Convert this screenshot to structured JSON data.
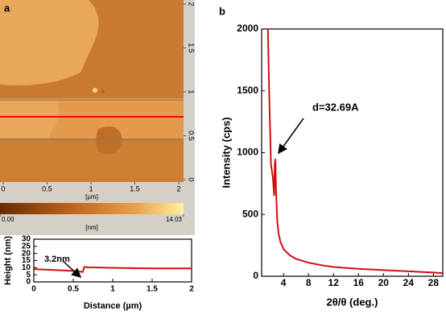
{
  "panel_labels": [
    "a",
    "b"
  ],
  "afm_image": {
    "xlim": [
      0,
      2
    ],
    "xticks": [
      0,
      0.5,
      1,
      1.5,
      2
    ],
    "yticks": [
      0,
      0.5,
      1,
      1.5,
      2
    ],
    "unit": "[µm]",
    "colorbar": {
      "ticks": [
        {
          "value": 0,
          "label": "0.00"
        },
        {
          "value": 14.03,
          "label": "14.03"
        }
      ],
      "unit": "[nm]"
    }
  },
  "chart_data": [
    {
      "type": "line",
      "xlabel": "Distance (µm)",
      "ylabel": "Height (nm)",
      "annotation": "3.2nm",
      "xlim": [
        0,
        2
      ],
      "xticks": [
        0,
        0.5,
        1,
        1.5,
        2
      ],
      "ylim": [
        0,
        30
      ],
      "yticks": [
        0,
        5,
        10,
        15,
        20,
        25,
        30
      ],
      "grid": false,
      "series": [
        {
          "color": "#d01010",
          "x": [
            0,
            0.2,
            0.4,
            0.55,
            0.62,
            0.64,
            0.7,
            0.9,
            1.2,
            1.5,
            2
          ],
          "values": [
            9,
            8.5,
            8,
            7.5,
            7,
            10.5,
            10.2,
            10,
            9.7,
            9.5,
            9.5
          ]
        }
      ]
    },
    {
      "type": "line",
      "xlabel": "2θ/θ (deg.)",
      "ylabel": "Intensity (cps)",
      "annotation": "d=32.69A",
      "xlim": [
        0.5,
        29.5
      ],
      "xticks": [
        4,
        8,
        12,
        16,
        20,
        24,
        28
      ],
      "ylim": [
        0,
        2000
      ],
      "yticks": [
        0,
        500,
        1000,
        1500,
        2000
      ],
      "grid": false,
      "series": [
        {
          "color": "#d01010",
          "x": [
            1.5,
            1.7,
            2.0,
            2.3,
            2.5,
            2.6,
            2.7,
            2.8,
            3.0,
            3.2,
            3.5,
            4,
            5,
            6,
            8,
            10,
            12,
            16,
            20,
            24,
            28,
            29.5
          ],
          "values": [
            2000,
            1500,
            900,
            800,
            650,
            900,
            950,
            700,
            450,
            350,
            280,
            220,
            170,
            140,
            110,
            90,
            75,
            60,
            50,
            40,
            30,
            25
          ]
        }
      ]
    }
  ]
}
